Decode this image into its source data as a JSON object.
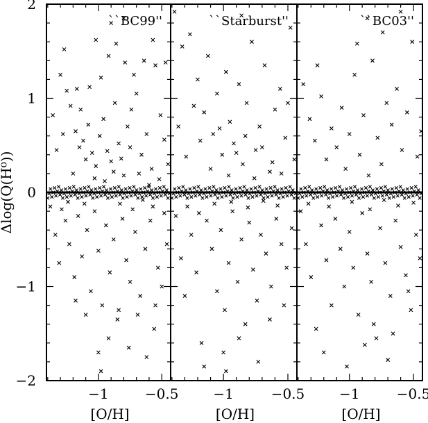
{
  "figure": {
    "ylabel": "Δlog(Q(H⁰))",
    "xlabel": "[O/H]"
  },
  "chart_data": [
    {
      "type": "scatter",
      "title": "``BC99''",
      "xlabel": "[O/H]",
      "ylabel": "Δlog(Q(H⁰))",
      "xlim": [
        -1.41,
        -0.43
      ],
      "ylim": [
        -2,
        2
      ],
      "xticks": [
        -1,
        -0.5
      ],
      "xtick_labels": [
        "−1",
        "−0.5"
      ],
      "yticks": [
        -2,
        -1,
        0,
        1,
        2
      ],
      "ytick_labels": [
        "−2",
        "−1",
        "0",
        "1",
        "2"
      ],
      "marker": "x",
      "color": "#000000",
      "points": [
        [
          -1.3,
          1.25
        ],
        [
          -1.25,
          1.08
        ],
        [
          -1.22,
          0.92
        ],
        [
          -1.18,
          0.65
        ],
        [
          -1.15,
          0.48
        ],
        [
          -1.12,
          0.55
        ],
        [
          -1.1,
          0.35
        ],
        [
          -1.08,
          0.72
        ],
        [
          -1.05,
          0.42
        ],
        [
          -1.02,
          0.28
        ],
        [
          -0.99,
          0.6
        ],
        [
          -0.96,
          0.78
        ],
        [
          -0.93,
          0.44
        ],
        [
          -0.9,
          0.33
        ],
        [
          -0.87,
          0.95
        ],
        [
          -0.84,
          0.52
        ],
        [
          -0.8,
          0.18
        ],
        [
          -0.77,
          0.7
        ],
        [
          -0.74,
          0.88
        ],
        [
          -0.7,
          1.05
        ],
        [
          -0.66,
          0.4
        ],
        [
          -0.62,
          0.62
        ],
        [
          -0.58,
          0.25
        ],
        [
          -0.55,
          1.35
        ],
        [
          -0.51,
          0.82
        ],
        [
          -0.48,
          0.56
        ],
        [
          -0.45,
          0.3
        ],
        [
          -1.36,
          0.82
        ],
        [
          -1.33,
          0.45
        ],
        [
          -1.28,
          0.62
        ],
        [
          -1.2,
          0.2
        ],
        [
          -1.14,
          0.88
        ],
        [
          -1.07,
          1.12
        ],
        [
          -0.98,
          1.22
        ],
        [
          -0.92,
          1.45
        ],
        [
          -0.86,
          1.58
        ],
        [
          -0.79,
          1.38
        ],
        [
          -0.72,
          1.25
        ],
        [
          -0.64,
          1.4
        ],
        [
          -0.57,
          1.62
        ],
        [
          -1.27,
          1.52
        ],
        [
          -1.17,
          1.1
        ],
        [
          -1.03,
          0.15
        ],
        [
          -0.95,
          0.12
        ],
        [
          -0.88,
          0.22
        ],
        [
          -0.82,
          0.36
        ],
        [
          -0.75,
          0.48
        ],
        [
          -0.68,
          0.2
        ],
        [
          -0.6,
          0.08
        ],
        [
          -0.52,
          0.14
        ],
        [
          -1.38,
          -0.15
        ],
        [
          -1.34,
          -0.45
        ],
        [
          -1.31,
          -0.75
        ],
        [
          -1.26,
          -0.3
        ],
        [
          -1.23,
          -0.55
        ],
        [
          -1.19,
          -0.9
        ],
        [
          -1.16,
          -0.25
        ],
        [
          -1.13,
          -0.68
        ],
        [
          -1.09,
          -0.4
        ],
        [
          -1.06,
          -1.05
        ],
        [
          -1.03,
          -0.2
        ],
        [
          -1.0,
          -0.62
        ],
        [
          -0.97,
          -1.2
        ],
        [
          -0.94,
          -0.35
        ],
        [
          -0.91,
          -0.85
        ],
        [
          -0.88,
          -0.5
        ],
        [
          -0.85,
          -1.35
        ],
        [
          -0.81,
          -0.28
        ],
        [
          -0.78,
          -0.72
        ],
        [
          -0.75,
          -0.95
        ],
        [
          -0.71,
          -0.42
        ],
        [
          -0.67,
          -1.1
        ],
        [
          -0.63,
          -0.6
        ],
        [
          -0.59,
          -0.3
        ],
        [
          -0.56,
          -1.45
        ],
        [
          -0.53,
          -0.8
        ],
        [
          -0.5,
          -1.0
        ],
        [
          -0.46,
          -0.55
        ],
        [
          -1.0,
          -1.7
        ],
        [
          -0.92,
          -1.55
        ],
        [
          -0.84,
          -1.25
        ],
        [
          -0.76,
          -1.65
        ],
        [
          -0.69,
          -1.3
        ],
        [
          -0.62,
          -1.75
        ],
        [
          -1.1,
          -1.3
        ],
        [
          -1.18,
          -1.15
        ],
        [
          -0.98,
          -1.9
        ],
        [
          -0.55,
          -1.2
        ],
        [
          -1.24,
          -0.1
        ],
        [
          -0.83,
          -0.12
        ],
        [
          -0.73,
          -0.18
        ],
        [
          -0.65,
          -0.08
        ],
        [
          -0.57,
          -0.15
        ],
        [
          -1.11,
          -0.12
        ],
        [
          -1.29,
          -0.18
        ],
        [
          -0.48,
          -0.22
        ],
        [
          -1.02,
          1.62
        ],
        [
          -0.8,
          1.85
        ],
        [
          -0.9,
          1.8
        ],
        [
          -0.47,
          1.38
        ]
      ]
    },
    {
      "type": "scatter",
      "title": "``Starburst''",
      "xlabel": "[O/H]",
      "xlim": [
        -1.41,
        -0.43
      ],
      "ylim": [
        -2,
        2
      ],
      "xticks": [
        -1,
        -0.5
      ],
      "xtick_labels": [
        "−1",
        "−0.5"
      ],
      "marker": "x",
      "color": "#000000",
      "points": [
        [
          -1.38,
          1.92
        ],
        [
          -1.32,
          1.55
        ],
        [
          -1.26,
          1.68
        ],
        [
          -1.2,
          1.2
        ],
        [
          -1.15,
          0.85
        ],
        [
          -1.12,
          1.45
        ],
        [
          -1.08,
          0.62
        ],
        [
          -1.05,
          1.05
        ],
        [
          -1.01,
          0.4
        ],
        [
          -0.98,
          1.28
        ],
        [
          -0.95,
          0.75
        ],
        [
          -0.92,
          0.52
        ],
        [
          -0.88,
          1.15
        ],
        [
          -0.85,
          0.3
        ],
        [
          -0.82,
          0.95
        ],
        [
          -0.78,
          1.6
        ],
        [
          -0.75,
          0.45
        ],
        [
          -0.72,
          0.7
        ],
        [
          -0.68,
          1.35
        ],
        [
          -0.64,
          0.22
        ],
        [
          -0.6,
          0.88
        ],
        [
          -0.56,
          1.1
        ],
        [
          -0.52,
          0.58
        ],
        [
          -0.48,
          1.75
        ],
        [
          -0.45,
          0.35
        ],
        [
          -1.35,
          0.7
        ],
        [
          -1.29,
          0.38
        ],
        [
          -1.23,
          0.92
        ],
        [
          -1.18,
          0.55
        ],
        [
          -1.1,
          0.25
        ],
        [
          -1.03,
          0.68
        ],
        [
          -0.96,
          0.18
        ],
        [
          -0.9,
          0.42
        ],
        [
          -0.83,
          0.6
        ],
        [
          -0.76,
          0.15
        ],
        [
          -0.7,
          0.48
        ],
        [
          -0.62,
          0.32
        ],
        [
          -0.55,
          0.2
        ],
        [
          -0.5,
          0.95
        ],
        [
          -0.86,
          1.88
        ],
        [
          -1.37,
          -0.25
        ],
        [
          -1.33,
          -0.7
        ],
        [
          -1.3,
          -1.1
        ],
        [
          -1.25,
          -0.45
        ],
        [
          -1.21,
          -0.85
        ],
        [
          -1.17,
          -1.6
        ],
        [
          -1.13,
          -0.3
        ],
        [
          -1.09,
          -0.6
        ],
        [
          -1.05,
          -1.05
        ],
        [
          -1.02,
          -0.4
        ],
        [
          -0.99,
          -1.25
        ],
        [
          -0.96,
          -0.75
        ],
        [
          -0.93,
          -0.2
        ],
        [
          -0.89,
          -0.95
        ],
        [
          -0.86,
          -0.5
        ],
        [
          -0.83,
          -1.4
        ],
        [
          -0.8,
          -0.32
        ],
        [
          -0.77,
          -0.82
        ],
        [
          -0.74,
          -1.15
        ],
        [
          -0.71,
          -0.45
        ],
        [
          -0.67,
          -0.65
        ],
        [
          -0.63,
          -1.0
        ],
        [
          -0.59,
          -0.28
        ],
        [
          -0.55,
          -0.55
        ],
        [
          -0.51,
          -0.8
        ],
        [
          -0.47,
          -0.38
        ],
        [
          -1.15,
          -1.85
        ],
        [
          -1.0,
          -1.7
        ],
        [
          -0.88,
          -1.55
        ],
        [
          -0.73,
          -1.8
        ],
        [
          -1.28,
          -0.15
        ],
        [
          -1.07,
          -0.12
        ],
        [
          -0.94,
          -0.1
        ],
        [
          -0.81,
          -0.16
        ],
        [
          -0.69,
          -0.09
        ],
        [
          -0.58,
          -0.14
        ],
        [
          -1.19,
          -0.22
        ],
        [
          -0.98,
          -1.9
        ],
        [
          -0.64,
          -1.35
        ],
        [
          -0.53,
          -1.2
        ]
      ]
    },
    {
      "type": "scatter",
      "title": "``BC03''",
      "xlabel": "[O/H]",
      "xlim": [
        -1.41,
        -0.43
      ],
      "ylim": [
        -2,
        2
      ],
      "xticks": [
        -1,
        -0.5
      ],
      "xtick_labels": [
        "−1",
        "−0.5"
      ],
      "marker": "x",
      "color": "#000000",
      "points": [
        [
          -1.36,
          1.15
        ],
        [
          -1.31,
          0.78
        ],
        [
          -1.27,
          0.55
        ],
        [
          -1.22,
          1.02
        ],
        [
          -1.18,
          0.35
        ],
        [
          -1.14,
          0.68
        ],
        [
          -1.1,
          0.48
        ],
        [
          -1.06,
          0.9
        ],
        [
          -1.03,
          0.25
        ],
        [
          -1.0,
          0.62
        ],
        [
          -0.96,
          1.25
        ],
        [
          -0.92,
          0.4
        ],
        [
          -0.89,
          0.82
        ],
        [
          -0.85,
          0.18
        ],
        [
          -0.82,
          1.4
        ],
        [
          -0.78,
          0.58
        ],
        [
          -0.75,
          0.3
        ],
        [
          -0.71,
          0.95
        ],
        [
          -0.67,
          0.72
        ],
        [
          -0.63,
          1.1
        ],
        [
          -0.59,
          0.45
        ],
        [
          -0.55,
          0.85
        ],
        [
          -0.51,
          1.6
        ],
        [
          -0.47,
          0.38
        ],
        [
          -0.44,
          0.65
        ],
        [
          -0.94,
          1.58
        ],
        [
          -0.86,
          1.85
        ],
        [
          -0.74,
          1.7
        ],
        [
          -0.6,
          1.92
        ],
        [
          -1.25,
          1.35
        ],
        [
          -1.38,
          -0.2
        ],
        [
          -1.34,
          -0.55
        ],
        [
          -1.3,
          -0.9
        ],
        [
          -1.26,
          -1.45
        ],
        [
          -1.22,
          -0.35
        ],
        [
          -1.18,
          -0.72
        ],
        [
          -1.14,
          -1.2
        ],
        [
          -1.11,
          -0.28
        ],
        [
          -1.07,
          -0.6
        ],
        [
          -1.04,
          -1.0
        ],
        [
          -1.0,
          -0.42
        ],
        [
          -0.97,
          -0.8
        ],
        [
          -0.93,
          -1.3
        ],
        [
          -0.9,
          -0.22
        ],
        [
          -0.86,
          -0.65
        ],
        [
          -0.83,
          -0.95
        ],
        [
          -0.79,
          -1.55
        ],
        [
          -0.76,
          -0.38
        ],
        [
          -0.72,
          -0.75
        ],
        [
          -0.68,
          -1.1
        ],
        [
          -0.64,
          -0.3
        ],
        [
          -0.6,
          -0.58
        ],
        [
          -0.56,
          -0.88
        ],
        [
          -0.52,
          -1.25
        ],
        [
          -0.48,
          -0.45
        ],
        [
          -0.45,
          -0.7
        ],
        [
          -1.2,
          -1.7
        ],
        [
          -1.02,
          -1.85
        ],
        [
          -0.88,
          -1.62
        ],
        [
          -0.7,
          -1.78
        ],
        [
          -1.32,
          -0.12
        ],
        [
          -1.16,
          -0.15
        ],
        [
          -0.98,
          -0.1
        ],
        [
          -0.84,
          -0.18
        ],
        [
          -0.73,
          -0.08
        ],
        [
          -0.62,
          -0.14
        ],
        [
          -0.5,
          -0.11
        ],
        [
          -0.81,
          -1.4
        ],
        [
          -0.66,
          -1.5
        ],
        [
          -0.54,
          -1.05
        ]
      ]
    }
  ]
}
